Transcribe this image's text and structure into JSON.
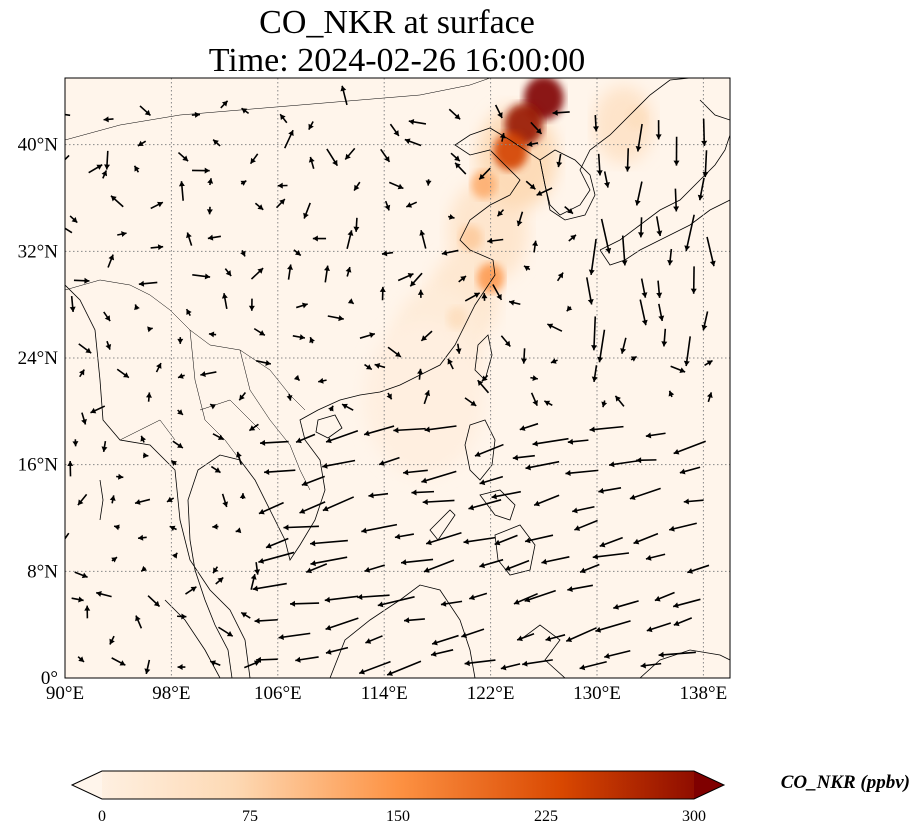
{
  "title": {
    "line1": "CO_NKR at surface",
    "line2": "Time: 2024-02-26 16:00:00"
  },
  "map": {
    "lon_range": [
      90,
      140
    ],
    "lat_range": [
      0,
      45
    ],
    "lon_ticks": [
      "90°E",
      "98°E",
      "106°E",
      "114°E",
      "122°E",
      "130°E",
      "138°E"
    ],
    "lat_ticks": [
      "0°",
      "8°N",
      "16°N",
      "24°N",
      "32°N",
      "40°N"
    ],
    "lon_tick_values": [
      90,
      98,
      106,
      114,
      122,
      130,
      138
    ],
    "lat_tick_values": [
      0,
      8,
      16,
      24,
      32,
      40
    ],
    "gridlines": true,
    "plume_hotspots": [
      {
        "lon": 126.0,
        "lat": 43.5,
        "value": 300
      },
      {
        "lon": 124.5,
        "lat": 41.5,
        "value": 280
      },
      {
        "lon": 123.5,
        "lat": 39.5,
        "value": 230
      },
      {
        "lon": 121.5,
        "lat": 37.0,
        "value": 120
      },
      {
        "lon": 120.5,
        "lat": 33.0,
        "value": 90
      },
      {
        "lon": 122.0,
        "lat": 30.0,
        "value": 140
      },
      {
        "lon": 119.5,
        "lat": 27.0,
        "value": 60
      },
      {
        "lon": 133.0,
        "lat": 42.0,
        "value": 60
      }
    ]
  },
  "colorbar": {
    "label": "CO_NKR (ppbv)",
    "ticks": [
      "0",
      "75",
      "150",
      "225",
      "300"
    ],
    "tick_values": [
      0,
      75,
      150,
      225,
      300
    ],
    "range": [
      0,
      300
    ],
    "colors": [
      "#fff5eb",
      "#fdd0a2",
      "#fd8d3c",
      "#d94801",
      "#8c2d04",
      "#7f0000"
    ]
  }
}
